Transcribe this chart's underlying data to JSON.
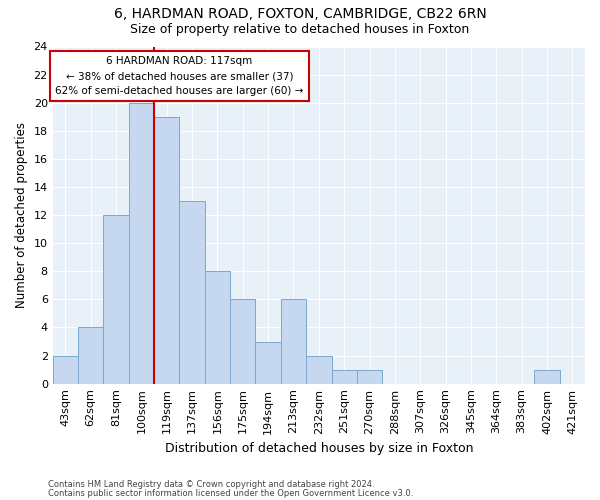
{
  "title1": "6, HARDMAN ROAD, FOXTON, CAMBRIDGE, CB22 6RN",
  "title2": "Size of property relative to detached houses in Foxton",
  "xlabel": "Distribution of detached houses by size in Foxton",
  "ylabel": "Number of detached properties",
  "categories": [
    "43sqm",
    "62sqm",
    "81sqm",
    "100sqm",
    "119sqm",
    "137sqm",
    "156sqm",
    "175sqm",
    "194sqm",
    "213sqm",
    "232sqm",
    "251sqm",
    "270sqm",
    "288sqm",
    "307sqm",
    "326sqm",
    "345sqm",
    "364sqm",
    "383sqm",
    "402sqm",
    "421sqm"
  ],
  "values": [
    2,
    4,
    12,
    20,
    19,
    13,
    8,
    6,
    3,
    6,
    2,
    1,
    1,
    0,
    0,
    0,
    0,
    0,
    0,
    1,
    0
  ],
  "bar_color": "#c5d8f0",
  "bar_edge_color": "#7aa8cc",
  "vline_index": 4,
  "vline_color": "#cc0000",
  "annotation_text": "6 HARDMAN ROAD: 117sqm\n← 38% of detached houses are smaller (37)\n62% of semi-detached houses are larger (60) →",
  "annotation_box_color": "#ffffff",
  "annotation_box_edge": "#cc0000",
  "ylim": [
    0,
    24
  ],
  "yticks": [
    0,
    2,
    4,
    6,
    8,
    10,
    12,
    14,
    16,
    18,
    20,
    22,
    24
  ],
  "bg_color": "#e8f0f8",
  "footer1": "Contains HM Land Registry data © Crown copyright and database right 2024.",
  "footer2": "Contains public sector information licensed under the Open Government Licence v3.0."
}
